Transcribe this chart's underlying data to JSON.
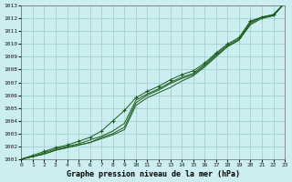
{
  "title": "Graphe pression niveau de la mer (hPa)",
  "background_color": "#cceef0",
  "grid_color": "#99cccc",
  "line_color": "#1a5c1a",
  "xlim": [
    0,
    23
  ],
  "ylim": [
    1001,
    1013
  ],
  "xticks": [
    0,
    1,
    2,
    3,
    4,
    5,
    6,
    7,
    8,
    9,
    10,
    11,
    12,
    13,
    14,
    15,
    16,
    17,
    18,
    19,
    20,
    21,
    22,
    23
  ],
  "yticks": [
    1001,
    1002,
    1003,
    1004,
    1005,
    1006,
    1007,
    1008,
    1009,
    1010,
    1011,
    1012,
    1013
  ],
  "series": [
    [
      1001.0,
      1001.2,
      1001.4,
      1001.7,
      1001.9,
      1002.1,
      1002.3,
      1002.6,
      1002.9,
      1003.3,
      1005.2,
      1005.8,
      1006.2,
      1006.6,
      1007.1,
      1007.5,
      1008.2,
      1009.0,
      1009.8,
      1010.3,
      1011.5,
      1012.0,
      1012.2,
      1013.2
    ],
    [
      1001.0,
      1001.2,
      1001.4,
      1001.7,
      1001.9,
      1002.1,
      1002.3,
      1002.7,
      1003.0,
      1003.5,
      1005.4,
      1006.0,
      1006.4,
      1006.9,
      1007.3,
      1007.6,
      1008.3,
      1009.1,
      1009.8,
      1010.3,
      1011.6,
      1012.1,
      1012.2,
      1013.2
    ],
    [
      1001.0,
      1001.2,
      1001.5,
      1001.8,
      1002.0,
      1002.2,
      1002.5,
      1002.8,
      1003.2,
      1003.8,
      1005.6,
      1006.1,
      1006.5,
      1007.0,
      1007.4,
      1007.7,
      1008.4,
      1009.2,
      1009.9,
      1010.4,
      1011.7,
      1012.1,
      1012.3,
      1013.2
    ],
    [
      1001.0,
      1001.3,
      1001.6,
      1001.9,
      1002.1,
      1002.4,
      1002.7,
      1003.2,
      1004.0,
      1004.8,
      1005.8,
      1006.3,
      1006.7,
      1007.2,
      1007.6,
      1007.9,
      1008.5,
      1009.3,
      1010.0,
      1010.5,
      1011.8,
      1012.1,
      1012.3,
      1013.2
    ]
  ],
  "marker_idx": 3
}
